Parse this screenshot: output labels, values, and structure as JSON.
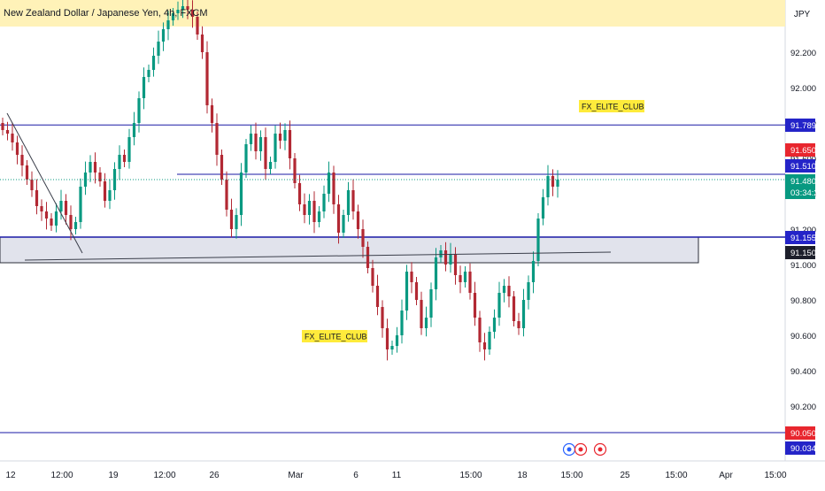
{
  "header": {
    "title": "New Zealand Dollar / Japanese Yen, 4h, FXCM",
    "currency": "JPY"
  },
  "colors": {
    "up": "#089981",
    "down": "#b22833",
    "line_blue": "#1a1aa6",
    "band_fill": "#e1e3ec",
    "highlight": "#fff2b8",
    "label_yellow": "#ffeb3b",
    "price_current": "#089981",
    "price_red": "#e8262e",
    "price_blue": "#2424c8",
    "price_black": "#1d1f2b"
  },
  "chart_data": {
    "type": "candlestick",
    "symbol": "NZDJPY",
    "timeframe": "4h",
    "ylim": [
      90.05,
      92.4
    ],
    "x_ticks": [
      "12",
      "12:00",
      "19",
      "12:00",
      "26",
      "Mar",
      "6",
      "11",
      "15:00",
      "18",
      "15:00",
      "25",
      "15:00",
      "Apr",
      "15:00"
    ],
    "y_ticks": [
      "92.200",
      "92.000",
      "91.800",
      "91.600",
      "91.400",
      "91.200",
      "91.000",
      "90.800",
      "90.600",
      "90.400",
      "90.200"
    ],
    "horizontal_lines": [
      91.789,
      91.51,
      91.155,
      90.05
    ],
    "support_zone": [
      91.155,
      91.01
    ],
    "price_labels": [
      {
        "text": "91.789",
        "kind": "blue"
      },
      {
        "text": "91.650",
        "kind": "red"
      },
      {
        "text": "91.510",
        "kind": "blue"
      },
      {
        "text": "91.480",
        "sub": "03:34:23",
        "kind": "current"
      },
      {
        "text": "91.155",
        "kind": "blue"
      },
      {
        "text": "91.150",
        "kind": "black"
      },
      {
        "text": "90.050",
        "kind": "red"
      },
      {
        "text": "90.034",
        "kind": "blue"
      }
    ],
    "annotations": [
      "FX_ELITE_CLUB",
      "FX_ELITE_CLUB"
    ],
    "candles_close": [
      91.76,
      91.74,
      91.69,
      91.62,
      91.56,
      91.48,
      91.42,
      91.33,
      91.3,
      91.26,
      91.22,
      91.3,
      91.36,
      91.28,
      91.2,
      91.24,
      91.44,
      91.52,
      91.58,
      91.52,
      91.47,
      91.36,
      91.42,
      91.54,
      91.62,
      91.58,
      91.72,
      91.8,
      91.94,
      92.06,
      92.1,
      92.18,
      92.26,
      92.33,
      92.38,
      92.42,
      92.44,
      92.46,
      92.44,
      92.4,
      92.3,
      92.2,
      91.9,
      91.8,
      91.62,
      91.48,
      91.31,
      91.2,
      91.28,
      91.52,
      91.68,
      91.74,
      91.64,
      91.72,
      91.54,
      91.58,
      91.74,
      91.7,
      91.76,
      91.6,
      91.46,
      91.34,
      91.28,
      91.36,
      91.24,
      91.3,
      91.4,
      91.52,
      91.34,
      91.18,
      91.28,
      91.42,
      91.3,
      91.2,
      91.1,
      90.98,
      90.88,
      90.76,
      90.64,
      90.52,
      90.54,
      90.6,
      90.74,
      90.96,
      90.9,
      90.8,
      90.64,
      90.7,
      90.86,
      91.04,
      91.08,
      91.0,
      91.06,
      90.94,
      90.9,
      90.96,
      90.84,
      90.7,
      90.56,
      90.52,
      90.62,
      90.7,
      90.84,
      90.88,
      90.82,
      90.68,
      90.64,
      90.8,
      90.9,
      91.02,
      91.26,
      91.38,
      91.5,
      91.44,
      91.48
    ]
  }
}
